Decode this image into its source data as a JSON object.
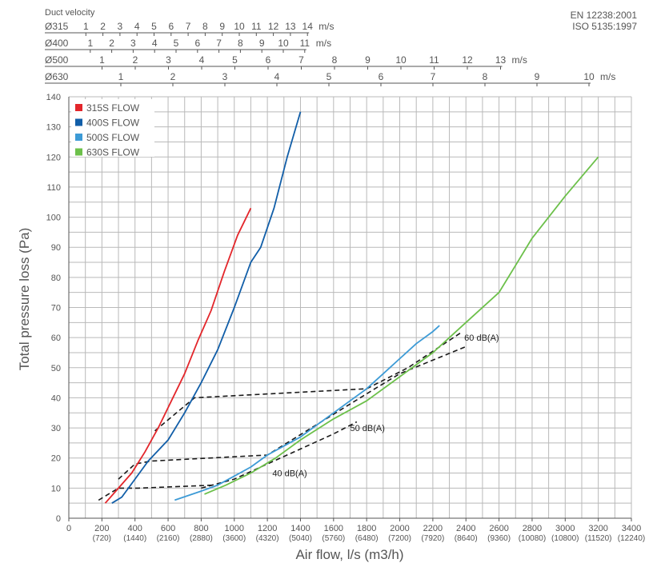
{
  "chart_data": {
    "type": "line",
    "standards": [
      "EN 12238:2001",
      "ISO 5135:1997"
    ],
    "top_axes_title": "Duct velocity",
    "duct_velocity_axes": [
      {
        "diameter": "Ø315",
        "unit": "m/s",
        "ticks": [
          "1",
          "2",
          "3",
          "4",
          "5",
          "6",
          "7",
          "8",
          "9",
          "10",
          "11",
          "12",
          "13",
          "14"
        ],
        "values": [
          1,
          2,
          3,
          4,
          5,
          6,
          7,
          8,
          9,
          10,
          11,
          12,
          13,
          14
        ]
      },
      {
        "diameter": "Ø400",
        "unit": "m/s",
        "ticks": [
          "1",
          "2",
          "3",
          "4",
          "5",
          "6",
          "7",
          "8",
          "9",
          "10",
          "11"
        ],
        "values": [
          1,
          2,
          3,
          4,
          5,
          6,
          7,
          8,
          9,
          10,
          11
        ]
      },
      {
        "diameter": "Ø500",
        "unit": "m/s",
        "ticks": [
          "1",
          "2",
          "3",
          "4",
          "5",
          "6",
          "7",
          "8",
          "9",
          "10",
          "11",
          "12",
          "13"
        ],
        "values": [
          1,
          2,
          3,
          4,
          5,
          6,
          7,
          8,
          9,
          10,
          11,
          12,
          13
        ]
      },
      {
        "diameter": "Ø630",
        "unit": "m/s",
        "ticks": [
          "1",
          "2",
          "3",
          "4",
          "5",
          "6",
          "7",
          "8",
          "9",
          "10"
        ],
        "values": [
          1,
          2,
          3,
          4,
          5,
          6,
          7,
          8,
          9,
          10
        ]
      }
    ],
    "xlabel": "Air flow, l/s (m3/h)",
    "ylabel": "Total pressure loss (Pa)",
    "xlim": [
      0,
      3400
    ],
    "ylim": [
      0,
      140
    ],
    "grid": true,
    "legend_position": "top-left",
    "x_ticks": [
      {
        "value": 0,
        "label": "0",
        "sub": ""
      },
      {
        "value": 200,
        "label": "200",
        "sub": "(720)"
      },
      {
        "value": 400,
        "label": "400",
        "sub": "(1440)"
      },
      {
        "value": 600,
        "label": "600",
        "sub": "(2160)"
      },
      {
        "value": 800,
        "label": "800",
        "sub": "(2880)"
      },
      {
        "value": 1000,
        "label": "1000",
        "sub": "(3600)"
      },
      {
        "value": 1200,
        "label": "1200",
        "sub": "(4320)"
      },
      {
        "value": 1400,
        "label": "1400",
        "sub": "(5040)"
      },
      {
        "value": 1600,
        "label": "1600",
        "sub": "(5760)"
      },
      {
        "value": 1800,
        "label": "1800",
        "sub": "(6480)"
      },
      {
        "value": 2000,
        "label": "2000",
        "sub": "(7200)"
      },
      {
        "value": 2200,
        "label": "2200",
        "sub": "(7920)"
      },
      {
        "value": 2400,
        "label": "2400",
        "sub": "(8640)"
      },
      {
        "value": 2600,
        "label": "2600",
        "sub": "(9360)"
      },
      {
        "value": 2800,
        "label": "2800",
        "sub": "(10080)"
      },
      {
        "value": 3000,
        "label": "3000",
        "sub": "(10800)"
      },
      {
        "value": 3200,
        "label": "3200",
        "sub": "(11520)"
      },
      {
        "value": 3400,
        "label": "3400",
        "sub": "(12240)"
      }
    ],
    "y_ticks": [
      0,
      10,
      20,
      30,
      40,
      50,
      60,
      70,
      80,
      90,
      100,
      110,
      120,
      130,
      140
    ],
    "series": [
      {
        "name": "315S FLOW",
        "color": "#e3262b",
        "points": [
          [
            220,
            5
          ],
          [
            300,
            10
          ],
          [
            380,
            15
          ],
          [
            460,
            22
          ],
          [
            540,
            30
          ],
          [
            620,
            39
          ],
          [
            700,
            48
          ],
          [
            780,
            59
          ],
          [
            860,
            69
          ],
          [
            940,
            82
          ],
          [
            1020,
            94
          ],
          [
            1100,
            103
          ]
        ]
      },
      {
        "name": "400S FLOW",
        "color": "#115ea8",
        "points": [
          [
            260,
            5
          ],
          [
            320,
            7
          ],
          [
            400,
            13
          ],
          [
            480,
            19
          ],
          [
            600,
            26
          ],
          [
            700,
            35
          ],
          [
            800,
            45
          ],
          [
            900,
            56
          ],
          [
            1000,
            70
          ],
          [
            1100,
            85
          ],
          [
            1160,
            90
          ],
          [
            1240,
            103
          ],
          [
            1320,
            120
          ],
          [
            1400,
            135
          ]
        ]
      },
      {
        "name": "500S FLOW",
        "color": "#3d9bd6",
        "points": [
          [
            640,
            6
          ],
          [
            800,
            9
          ],
          [
            900,
            11
          ],
          [
            1000,
            14
          ],
          [
            1100,
            17
          ],
          [
            1200,
            21
          ],
          [
            1300,
            24
          ],
          [
            1400,
            27
          ],
          [
            1500,
            31
          ],
          [
            1600,
            35
          ],
          [
            1700,
            39
          ],
          [
            1800,
            43
          ],
          [
            1900,
            48
          ],
          [
            2000,
            53
          ],
          [
            2100,
            58
          ],
          [
            2200,
            62
          ],
          [
            2240,
            64
          ]
        ]
      },
      {
        "name": "630S FLOW",
        "color": "#6cc04a",
        "points": [
          [
            820,
            8
          ],
          [
            950,
            11
          ],
          [
            1100,
            15
          ],
          [
            1250,
            20
          ],
          [
            1400,
            26
          ],
          [
            1600,
            33
          ],
          [
            1800,
            39
          ],
          [
            2000,
            47
          ],
          [
            2200,
            55
          ],
          [
            2400,
            65
          ],
          [
            2600,
            75
          ],
          [
            2700,
            84
          ],
          [
            2800,
            93
          ],
          [
            3000,
            107
          ],
          [
            3200,
            120
          ]
        ]
      }
    ],
    "noise_lines": [
      {
        "label": "40 dB(A)",
        "points": [
          [
            800,
            10
          ],
          [
            1000,
            13
          ],
          [
            1200,
            18
          ],
          [
            1400,
            23
          ],
          [
            1600,
            28
          ],
          [
            1740,
            32
          ]
        ]
      },
      {
        "label": "50 dB(A)",
        "points": [
          [
            300,
            13
          ],
          [
            400,
            18
          ],
          [
            500,
            19
          ],
          [
            1200,
            21
          ],
          [
            1850,
            43
          ],
          [
            2000,
            48
          ],
          [
            2400,
            57
          ]
        ]
      },
      {
        "label": "60 dB(A)",
        "points": [
          [
            520,
            29
          ],
          [
            650,
            35
          ],
          [
            760,
            40
          ],
          [
            1800,
            43
          ],
          [
            2050,
            50
          ],
          [
            2380,
            62
          ]
        ]
      },
      {
        "label": "",
        "points": [
          [
            180,
            6
          ],
          [
            300,
            10
          ],
          [
            420,
            10
          ],
          [
            880,
            11
          ]
        ]
      }
    ]
  }
}
